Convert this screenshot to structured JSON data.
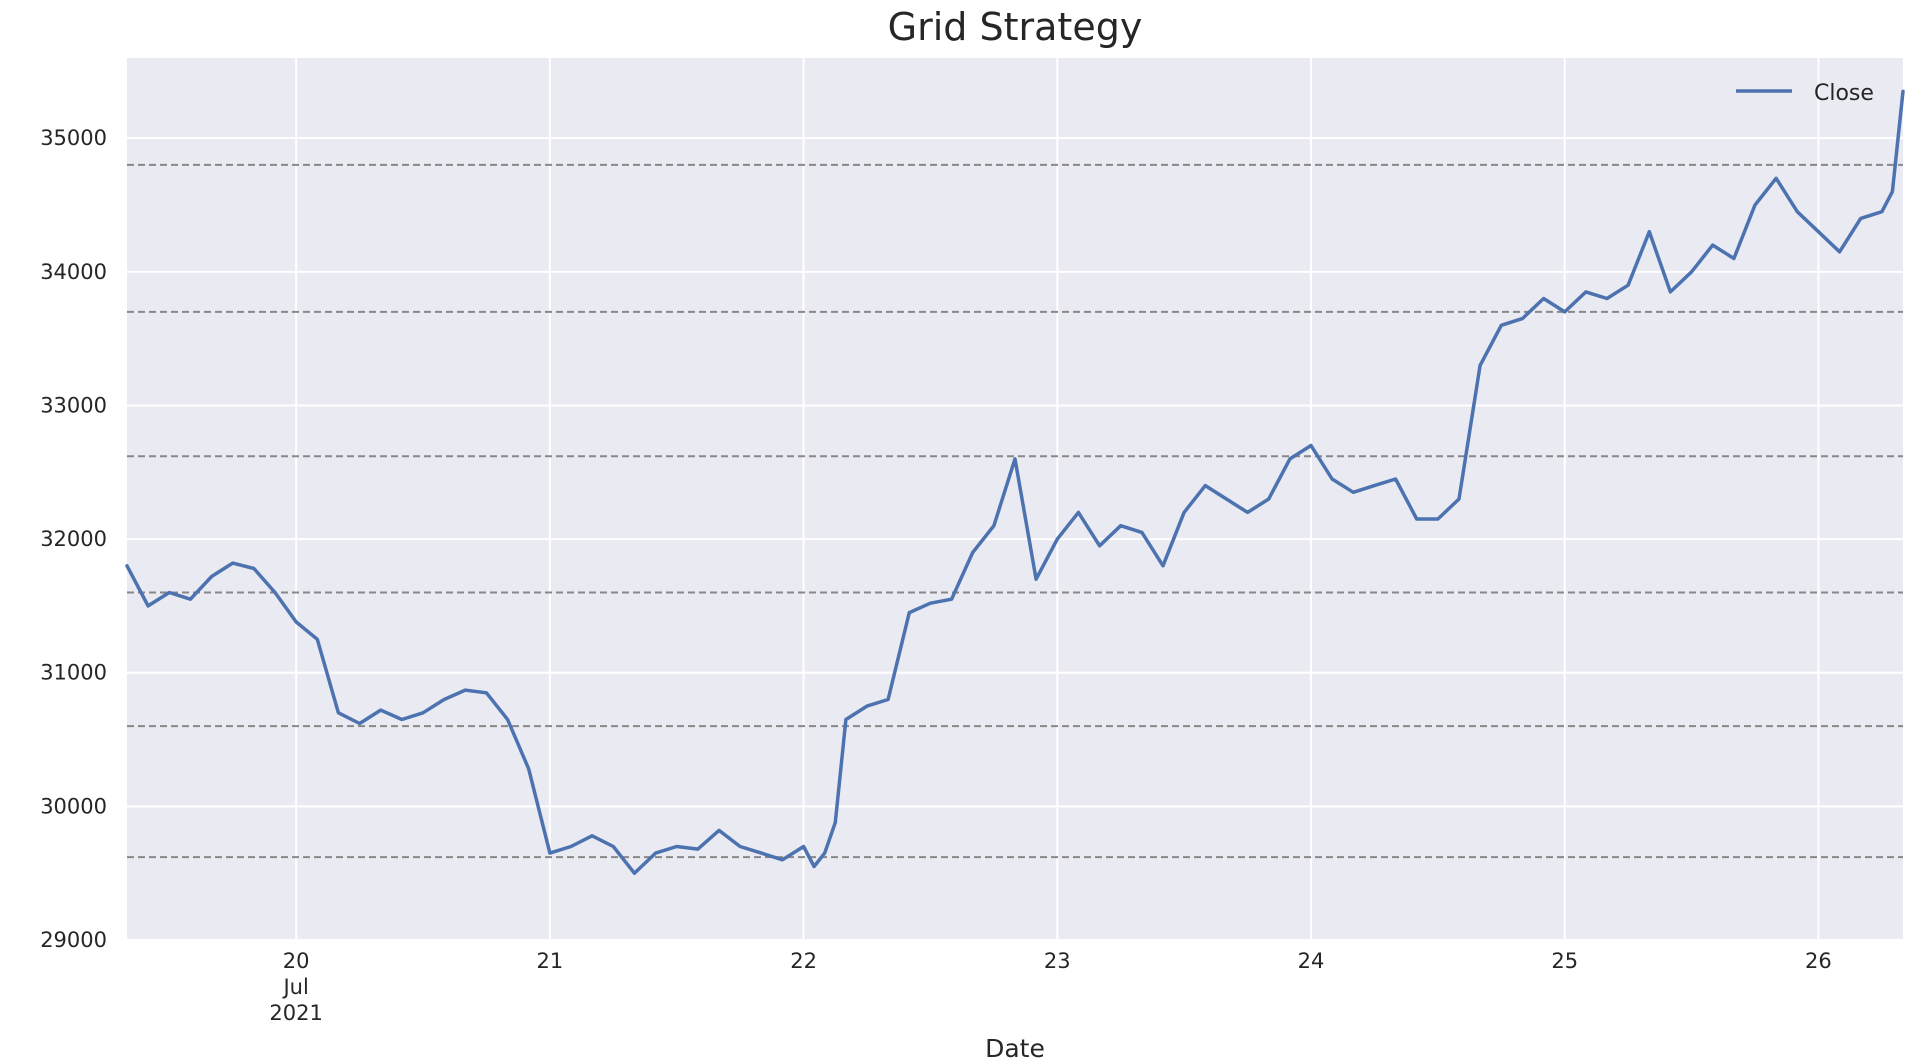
{
  "chart_data": {
    "type": "line",
    "title": "Grid Strategy",
    "xlabel": "Date",
    "ylabel": "",
    "ylim": [
      29000,
      35600
    ],
    "xlim": [
      "2021-07-19 08:00",
      "2021-07-26 08:00"
    ],
    "y_ticks": [
      "29000",
      "30000",
      "31000",
      "32000",
      "33000",
      "34000",
      "35000"
    ],
    "x_ticks": [
      {
        "x": "2021-07-20",
        "label": "20",
        "sublabel": "Jul",
        "sublabel2": "2021"
      },
      {
        "x": "2021-07-21",
        "label": "21"
      },
      {
        "x": "2021-07-22",
        "label": "22"
      },
      {
        "x": "2021-07-23",
        "label": "23"
      },
      {
        "x": "2021-07-24",
        "label": "24"
      },
      {
        "x": "2021-07-25",
        "label": "25"
      },
      {
        "x": "2021-07-26",
        "label": "26"
      }
    ],
    "grid": true,
    "legend_position": "top-right",
    "grid_levels": [
      29620,
      30600,
      31600,
      32620,
      33700,
      34800
    ],
    "series": [
      {
        "name": "Close",
        "color": "#4c72b0",
        "x": [
          "2021-07-19 08:00",
          "2021-07-19 09:00",
          "2021-07-19 10:00",
          "2021-07-19 12:00",
          "2021-07-19 14:00",
          "2021-07-19 16:00",
          "2021-07-19 18:00",
          "2021-07-19 20:00",
          "2021-07-19 22:00",
          "2021-07-20 00:00",
          "2021-07-20 02:00",
          "2021-07-20 04:00",
          "2021-07-20 06:00",
          "2021-07-20 08:00",
          "2021-07-20 10:00",
          "2021-07-20 12:00",
          "2021-07-20 14:00",
          "2021-07-20 16:00",
          "2021-07-20 18:00",
          "2021-07-20 20:00",
          "2021-07-20 22:00",
          "2021-07-21 00:00",
          "2021-07-21 02:00",
          "2021-07-21 04:00",
          "2021-07-21 06:00",
          "2021-07-21 08:00",
          "2021-07-21 10:00",
          "2021-07-21 12:00",
          "2021-07-21 14:00",
          "2021-07-21 16:00",
          "2021-07-21 18:00",
          "2021-07-21 20:00",
          "2021-07-21 22:00",
          "2021-07-22 00:00",
          "2021-07-22 01:00",
          "2021-07-22 02:00",
          "2021-07-22 03:00",
          "2021-07-22 04:00",
          "2021-07-22 06:00",
          "2021-07-22 08:00",
          "2021-07-22 10:00",
          "2021-07-22 12:00",
          "2021-07-22 14:00",
          "2021-07-22 16:00",
          "2021-07-22 18:00",
          "2021-07-22 20:00",
          "2021-07-22 22:00",
          "2021-07-23 00:00",
          "2021-07-23 02:00",
          "2021-07-23 04:00",
          "2021-07-23 06:00",
          "2021-07-23 08:00",
          "2021-07-23 10:00",
          "2021-07-23 12:00",
          "2021-07-23 14:00",
          "2021-07-23 16:00",
          "2021-07-23 18:00",
          "2021-07-23 20:00",
          "2021-07-23 22:00",
          "2021-07-24 00:00",
          "2021-07-24 02:00",
          "2021-07-24 04:00",
          "2021-07-24 06:00",
          "2021-07-24 08:00",
          "2021-07-24 10:00",
          "2021-07-24 12:00",
          "2021-07-24 14:00",
          "2021-07-24 16:00",
          "2021-07-24 18:00",
          "2021-07-24 20:00",
          "2021-07-24 22:00",
          "2021-07-25 00:00",
          "2021-07-25 02:00",
          "2021-07-25 04:00",
          "2021-07-25 06:00",
          "2021-07-25 08:00",
          "2021-07-25 10:00",
          "2021-07-25 12:00",
          "2021-07-25 14:00",
          "2021-07-25 16:00",
          "2021-07-25 18:00",
          "2021-07-25 20:00",
          "2021-07-25 22:00",
          "2021-07-26 00:00",
          "2021-07-26 02:00",
          "2021-07-26 04:00",
          "2021-07-26 06:00",
          "2021-07-26 07:00",
          "2021-07-26 08:00"
        ],
        "values": [
          31800,
          31650,
          31500,
          31600,
          31550,
          31720,
          31820,
          31780,
          31600,
          31380,
          31250,
          30700,
          30620,
          30720,
          30650,
          30700,
          30800,
          30870,
          30850,
          30650,
          30280,
          29650,
          29700,
          29780,
          29700,
          29500,
          29650,
          29700,
          29680,
          29820,
          29700,
          29650,
          29600,
          29700,
          29550,
          29650,
          29880,
          30650,
          30750,
          30800,
          31450,
          31520,
          31550,
          31900,
          32100,
          32600,
          31700,
          32000,
          32200,
          31950,
          32100,
          32050,
          31800,
          32200,
          32400,
          32300,
          32200,
          32300,
          32600,
          32700,
          32450,
          32350,
          32400,
          32450,
          32150,
          32150,
          32300,
          33300,
          33600,
          33650,
          33800,
          33700,
          33850,
          33800,
          33900,
          34300,
          33850,
          34000,
          34200,
          34100,
          34500,
          34700,
          34450,
          34300,
          34150,
          34400,
          34450,
          34600,
          35350
        ]
      }
    ]
  }
}
